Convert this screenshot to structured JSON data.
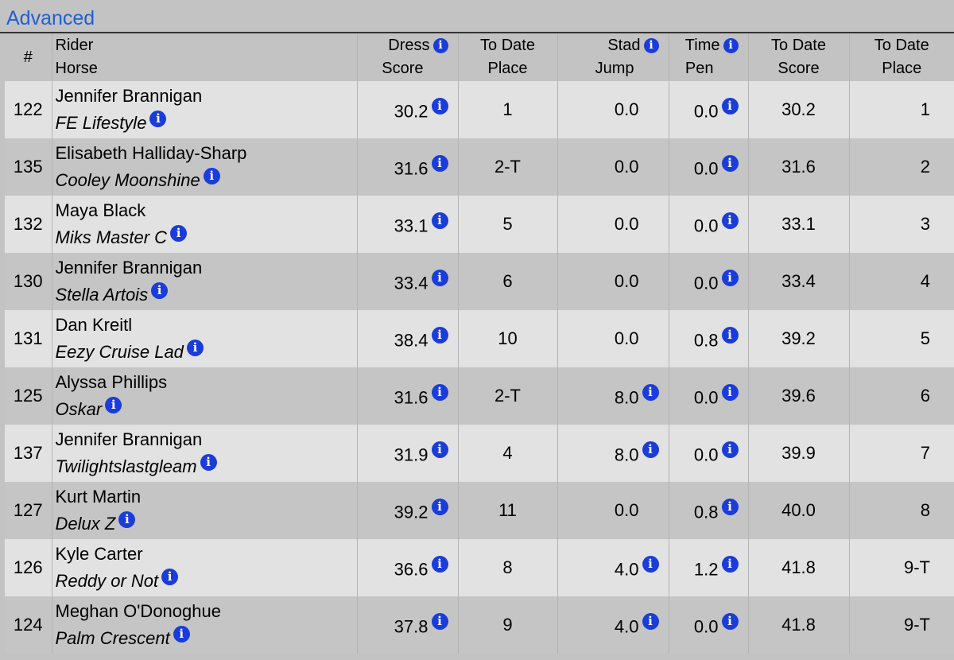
{
  "section": {
    "title": "Advanced"
  },
  "info_glyph": "i",
  "columns": {
    "num": "#",
    "rider": "Rider",
    "horse": "Horse",
    "dress": [
      "Dress",
      "Score"
    ],
    "todate_place1": [
      "To Date",
      "Place"
    ],
    "stad": [
      "Stad",
      "Jump"
    ],
    "time": [
      "Time",
      "Pen"
    ],
    "todate_score": [
      "To Date",
      "Score"
    ],
    "todate_place2": [
      "To Date",
      "Place"
    ]
  },
  "rows": [
    {
      "num": "122",
      "rider": "Jennifer Brannigan",
      "horse": "FE Lifestyle",
      "dress": "30.2",
      "place1": "1",
      "stad": "0.0",
      "stad_info": false,
      "time": "0.0",
      "time_info": true,
      "score": "30.2",
      "place2": "1"
    },
    {
      "num": "135",
      "rider": "Elisabeth Halliday-Sharp",
      "horse": "Cooley Moonshine",
      "dress": "31.6",
      "place1": "2-T",
      "stad": "0.0",
      "stad_info": false,
      "time": "0.0",
      "time_info": true,
      "score": "31.6",
      "place2": "2"
    },
    {
      "num": "132",
      "rider": "Maya Black",
      "horse": "Miks Master C",
      "dress": "33.1",
      "place1": "5",
      "stad": "0.0",
      "stad_info": false,
      "time": "0.0",
      "time_info": true,
      "score": "33.1",
      "place2": "3"
    },
    {
      "num": "130",
      "rider": "Jennifer Brannigan",
      "horse": "Stella Artois",
      "dress": "33.4",
      "place1": "6",
      "stad": "0.0",
      "stad_info": false,
      "time": "0.0",
      "time_info": true,
      "score": "33.4",
      "place2": "4"
    },
    {
      "num": "131",
      "rider": "Dan Kreitl",
      "horse": "Eezy Cruise Lad",
      "dress": "38.4",
      "place1": "10",
      "stad": "0.0",
      "stad_info": false,
      "time": "0.8",
      "time_info": true,
      "score": "39.2",
      "place2": "5"
    },
    {
      "num": "125",
      "rider": "Alyssa Phillips",
      "horse": "Oskar",
      "dress": "31.6",
      "place1": "2-T",
      "stad": "8.0",
      "stad_info": true,
      "time": "0.0",
      "time_info": true,
      "score": "39.6",
      "place2": "6"
    },
    {
      "num": "137",
      "rider": "Jennifer Brannigan",
      "horse": "Twilightslastgleam",
      "dress": "31.9",
      "place1": "4",
      "stad": "8.0",
      "stad_info": true,
      "time": "0.0",
      "time_info": true,
      "score": "39.9",
      "place2": "7"
    },
    {
      "num": "127",
      "rider": "Kurt Martin",
      "horse": "Delux Z",
      "dress": "39.2",
      "place1": "11",
      "stad": "0.0",
      "stad_info": false,
      "time": "0.8",
      "time_info": true,
      "score": "40.0",
      "place2": "8"
    },
    {
      "num": "126",
      "rider": "Kyle Carter",
      "horse": "Reddy or Not",
      "dress": "36.6",
      "place1": "8",
      "stad": "4.0",
      "stad_info": true,
      "time": "1.2",
      "time_info": true,
      "score": "41.8",
      "place2": "9-T"
    },
    {
      "num": "124",
      "rider": "Meghan O'Donoghue",
      "horse": "Palm Crescent",
      "dress": "37.8",
      "place1": "9",
      "stad": "4.0",
      "stad_info": true,
      "time": "0.0",
      "time_info": true,
      "score": "41.8",
      "place2": "9-T"
    }
  ]
}
